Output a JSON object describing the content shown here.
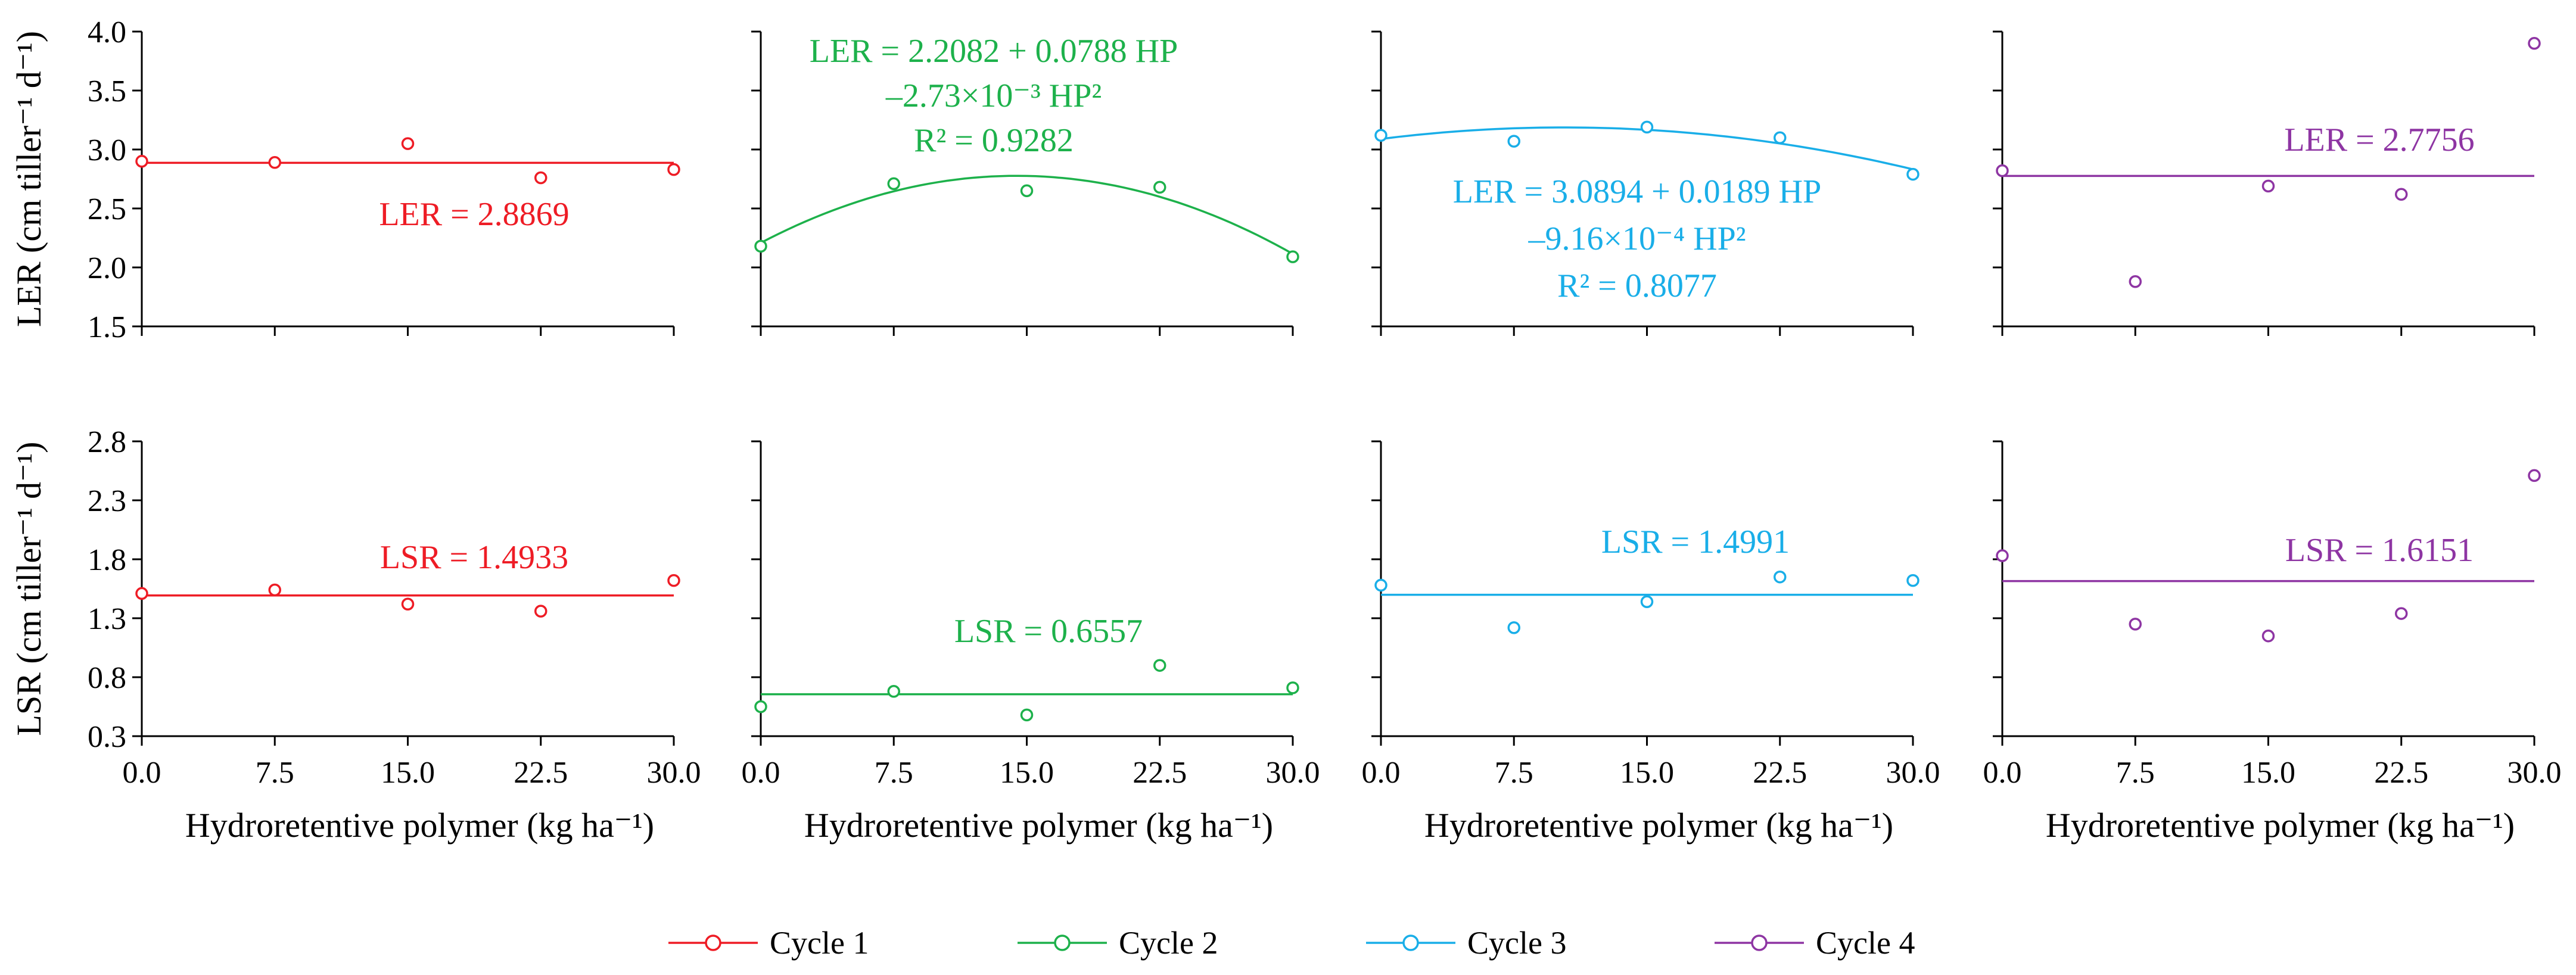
{
  "colors": {
    "Cycle 1": "#ee1c25",
    "Cycle 2": "#1db14b",
    "Cycle 3": "#19aee8",
    "Cycle 4": "#8e35a3",
    "axis": "#000000"
  },
  "legend": [
    {
      "label": "Cycle 1"
    },
    {
      "label": "Cycle 2"
    },
    {
      "label": "Cycle 3"
    },
    {
      "label": "Cycle 4"
    }
  ],
  "chart_data": [
    {
      "type": "scatter",
      "row": "LER",
      "cycle": "Cycle 1",
      "x": [
        0,
        7.5,
        15,
        22.5,
        30
      ],
      "y": [
        2.9,
        2.89,
        3.05,
        2.76,
        2.83
      ],
      "fit": {
        "kind": "constant",
        "a": 2.8869
      },
      "equation": [
        "LER = 2.8869"
      ],
      "ylabel": "LER (cm tiller⁻¹ d⁻¹)",
      "ylim": [
        1.5,
        4.0
      ],
      "yticks": [
        "1.5",
        "2.0",
        "2.5",
        "3.0",
        "3.5",
        "4.0"
      ],
      "xlim": [
        0,
        30
      ],
      "xticks": []
    },
    {
      "type": "scatter",
      "row": "LER",
      "cycle": "Cycle 2",
      "x": [
        0,
        7.5,
        15,
        22.5,
        30
      ],
      "y": [
        2.18,
        2.71,
        2.65,
        2.68,
        2.09
      ],
      "fit": {
        "kind": "quadratic",
        "a": 2.2082,
        "b": 0.0788,
        "c": -0.00273
      },
      "equation": [
        "LER = 2.2082 + 0.0788 HP",
        "–2.73×10⁻³ HP²",
        "R² = 0.9282"
      ],
      "ylim": [
        1.5,
        4.0
      ],
      "xlim": [
        0,
        30
      ],
      "xticks": []
    },
    {
      "type": "scatter",
      "row": "LER",
      "cycle": "Cycle 3",
      "x": [
        0,
        7.5,
        15,
        22.5,
        30
      ],
      "y": [
        3.12,
        3.07,
        3.19,
        3.1,
        2.79
      ],
      "fit": {
        "kind": "quadratic",
        "a": 3.0894,
        "b": 0.0189,
        "c": -0.000916
      },
      "equation": [
        "LER = 3.0894 + 0.0189 HP",
        "–9.16×10⁻⁴ HP²",
        "R² = 0.8077"
      ],
      "ylim": [
        1.5,
        4.0
      ],
      "xlim": [
        0,
        30
      ],
      "xticks": []
    },
    {
      "type": "scatter",
      "row": "LER",
      "cycle": "Cycle 4",
      "x": [
        0,
        7.5,
        15,
        22.5,
        30
      ],
      "y": [
        2.82,
        1.88,
        2.69,
        2.62,
        3.9
      ],
      "fit": {
        "kind": "constant",
        "a": 2.7756
      },
      "equation": [
        "LER = 2.7756"
      ],
      "ylim": [
        1.5,
        4.0
      ],
      "xlim": [
        0,
        30
      ],
      "xticks": []
    },
    {
      "type": "scatter",
      "row": "LSR",
      "cycle": "Cycle 1",
      "x": [
        0,
        7.5,
        15,
        22.5,
        30
      ],
      "y": [
        1.51,
        1.54,
        1.42,
        1.36,
        1.62
      ],
      "fit": {
        "kind": "constant",
        "a": 1.4933
      },
      "equation": [
        "LSR = 1.4933"
      ],
      "ylabel": "LSR (cm tiller⁻¹ d⁻¹)",
      "ylim": [
        0.3,
        2.8
      ],
      "yticks": [
        "0.3",
        "0.8",
        "1.3",
        "1.8",
        "2.3",
        "2.8"
      ],
      "xlim": [
        0,
        30
      ],
      "xticks": [
        "0.0",
        "7.5",
        "15.0",
        "22.5",
        "30.0"
      ],
      "xlabel": "Hydroretentive polymer (kg ha⁻¹)"
    },
    {
      "type": "scatter",
      "row": "LSR",
      "cycle": "Cycle 2",
      "x": [
        0,
        7.5,
        15,
        22.5,
        30
      ],
      "y": [
        0.55,
        0.68,
        0.48,
        0.9,
        0.71
      ],
      "fit": {
        "kind": "constant",
        "a": 0.6557
      },
      "equation": [
        "LSR = 0.6557"
      ],
      "ylim": [
        0.3,
        2.8
      ],
      "xlim": [
        0,
        30
      ],
      "xticks": [
        "0.0",
        "7.5",
        "15.0",
        "22.5",
        "30.0"
      ],
      "xlabel": "Hydroretentive polymer (kg ha⁻¹)"
    },
    {
      "type": "scatter",
      "row": "LSR",
      "cycle": "Cycle 3",
      "x": [
        0,
        7.5,
        15,
        22.5,
        30
      ],
      "y": [
        1.58,
        1.22,
        1.44,
        1.65,
        1.62
      ],
      "fit": {
        "kind": "constant",
        "a": 1.4991
      },
      "equation": [
        "LSR = 1.4991"
      ],
      "ylim": [
        0.3,
        2.8
      ],
      "xlim": [
        0,
        30
      ],
      "xticks": [
        "0.0",
        "7.5",
        "15.0",
        "22.5",
        "30.0"
      ],
      "xlabel": "Hydroretentive polymer (kg ha⁻¹)"
    },
    {
      "type": "scatter",
      "row": "LSR",
      "cycle": "Cycle 4",
      "x": [
        0,
        7.5,
        15,
        22.5,
        30
      ],
      "y": [
        1.83,
        1.25,
        1.15,
        1.34,
        2.51
      ],
      "fit": {
        "kind": "constant",
        "a": 1.6151
      },
      "equation": [
        "LSR = 1.6151"
      ],
      "ylim": [
        0.3,
        2.8
      ],
      "xlim": [
        0,
        30
      ],
      "xticks": [
        "0.0",
        "7.5",
        "15.0",
        "22.5",
        "30.0"
      ],
      "xlabel": "Hydroretentive polymer (kg ha⁻¹)"
    }
  ]
}
